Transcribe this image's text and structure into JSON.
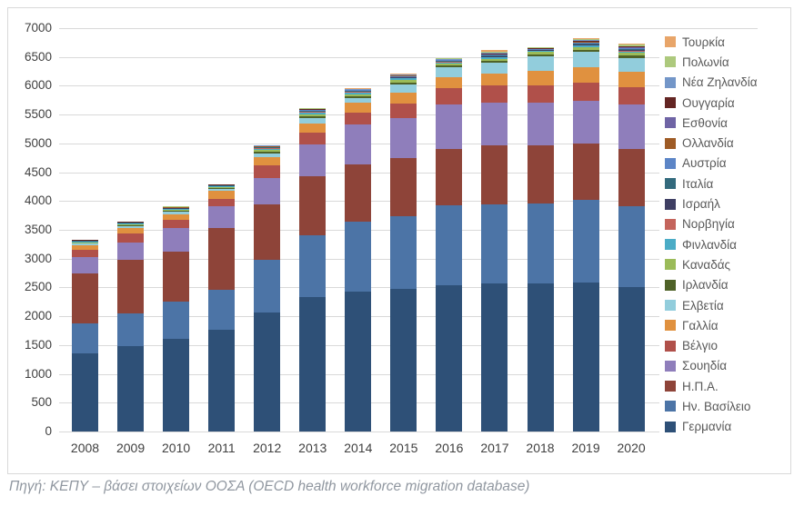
{
  "caption": "Πηγή: ΚΕΠΥ – βάσει στοιχείων ΟΟΣΑ (OECD health workforce migration database)",
  "chart_data": {
    "type": "bar",
    "subtype": "stacked-vertical",
    "title": "",
    "xlabel": "",
    "ylabel": "",
    "grid": true,
    "legend_position": "right",
    "legend_order": "top-down is reverse of stack order (top legend item = top stack segment)",
    "y_axis": {
      "min": 0,
      "max": 7000,
      "step": 500,
      "ticks": [
        "0",
        "500",
        "1000",
        "1500",
        "2000",
        "2500",
        "3000",
        "3500",
        "4000",
        "4500",
        "5000",
        "5500",
        "6000",
        "6500",
        "7000"
      ]
    },
    "categories": [
      "2008",
      "2009",
      "2010",
      "2011",
      "2012",
      "2013",
      "2014",
      "2015",
      "2016",
      "2017",
      "2018",
      "2019",
      "2020"
    ],
    "series_note": "listed bottom-of-stack first; values estimated from pixel measurements against gridlines",
    "series": [
      {
        "name": "Γερμανία",
        "color": "#2E5077",
        "values": [
          1350,
          1480,
          1600,
          1770,
          2070,
          2330,
          2425,
          2475,
          2530,
          2575,
          2575,
          2590,
          2500
        ]
      },
      {
        "name": "Ην. Βασίλειο",
        "color": "#4C74A6",
        "values": [
          530,
          565,
          655,
          695,
          905,
          1076,
          1207,
          1262,
          1392,
          1368,
          1383,
          1430,
          1406
        ]
      },
      {
        "name": "Η.Π.Α.",
        "color": "#8E4439",
        "values": [
          858,
          925,
          860,
          1063,
          957,
          1025,
          1009,
          1010,
          978,
          1014,
          1000,
          975,
          998
        ]
      },
      {
        "name": "Σουηδία",
        "color": "#8F7EBB",
        "values": [
          290,
          315,
          412,
          387,
          472,
          552,
          684,
          690,
          767,
          746,
          749,
          745,
          763
        ]
      },
      {
        "name": "Βέλγιο",
        "color": "#B0504A",
        "values": [
          128,
          148,
          146,
          122,
          211,
          210,
          210,
          250,
          289,
          294,
          300,
          310,
          305
        ]
      },
      {
        "name": "Γαλλία",
        "color": "#E0913F",
        "values": [
          72,
          95,
          95,
          145,
          142,
          157,
          165,
          195,
          184,
          220,
          248,
          265,
          273
        ]
      },
      {
        "name": "Ελβετία",
        "color": "#92CDDC",
        "values": [
          30,
          32,
          40,
          32,
          68,
          90,
          90,
          145,
          173,
          180,
          252,
          270,
          236
        ]
      },
      {
        "name": "Ιρλανδία",
        "color": "#4F6228",
        "values": [
          12,
          14,
          18,
          14,
          25,
          30,
          30,
          32,
          34,
          33,
          35,
          38,
          38
        ]
      },
      {
        "name": "Καναδάς",
        "color": "#9BBB59",
        "values": [
          14,
          16,
          20,
          16,
          30,
          35,
          34,
          36,
          40,
          40,
          44,
          48,
          48
        ]
      },
      {
        "name": "Φινλανδία",
        "color": "#4BACC6",
        "values": [
          10,
          12,
          15,
          12,
          24,
          30,
          30,
          32,
          18,
          22,
          15,
          25,
          26
        ]
      },
      {
        "name": "Νορβηγία",
        "color": "#C4645C",
        "values": [
          4,
          5,
          5,
          4,
          8,
          10,
          8,
          9,
          8,
          9,
          6,
          10,
          11
        ]
      },
      {
        "name": "Ισραήλ",
        "color": "#3F3F63",
        "values": [
          4,
          5,
          5,
          4,
          8,
          9,
          8,
          9,
          8,
          10,
          7,
          12,
          13
        ]
      },
      {
        "name": "Ιταλία",
        "color": "#336A7D",
        "values": [
          5,
          6,
          6,
          5,
          9,
          10,
          9,
          10,
          9,
          12,
          8,
          14,
          15
        ]
      },
      {
        "name": "Αυστρία",
        "color": "#5C85C6",
        "values": [
          6,
          7,
          8,
          6,
          10,
          12,
          11,
          12,
          10,
          14,
          10,
          18,
          19
        ]
      },
      {
        "name": "Ολλανδία",
        "color": "#9E5B25",
        "values": [
          3,
          3,
          4,
          3,
          5,
          6,
          5,
          6,
          5,
          7,
          5,
          8,
          9
        ]
      },
      {
        "name": "Εσθονία",
        "color": "#6F64A5",
        "values": [
          2,
          2,
          2,
          2,
          3,
          3,
          3,
          3,
          3,
          4,
          3,
          6,
          6
        ]
      },
      {
        "name": "Ουγγαρία",
        "color": "#632523",
        "values": [
          4,
          5,
          5,
          4,
          7,
          8,
          7,
          8,
          7,
          10,
          7,
          12,
          13
        ]
      },
      {
        "name": "Νέα Ζηλανδία",
        "color": "#7396C8",
        "values": [
          3,
          3,
          4,
          2,
          5,
          6,
          6,
          7,
          6,
          9,
          6,
          12,
          12
        ]
      },
      {
        "name": "Πολωνία",
        "color": "#ADC97D",
        "values": [
          5,
          6,
          7,
          4,
          8,
          9,
          9,
          12,
          13,
          25,
          10,
          20,
          22
        ]
      },
      {
        "name": "Τουρκία",
        "color": "#E8A569",
        "values": [
          2,
          3,
          4,
          2,
          5,
          6,
          6,
          10,
          8,
          28,
          8,
          15,
          16
        ]
      }
    ]
  }
}
